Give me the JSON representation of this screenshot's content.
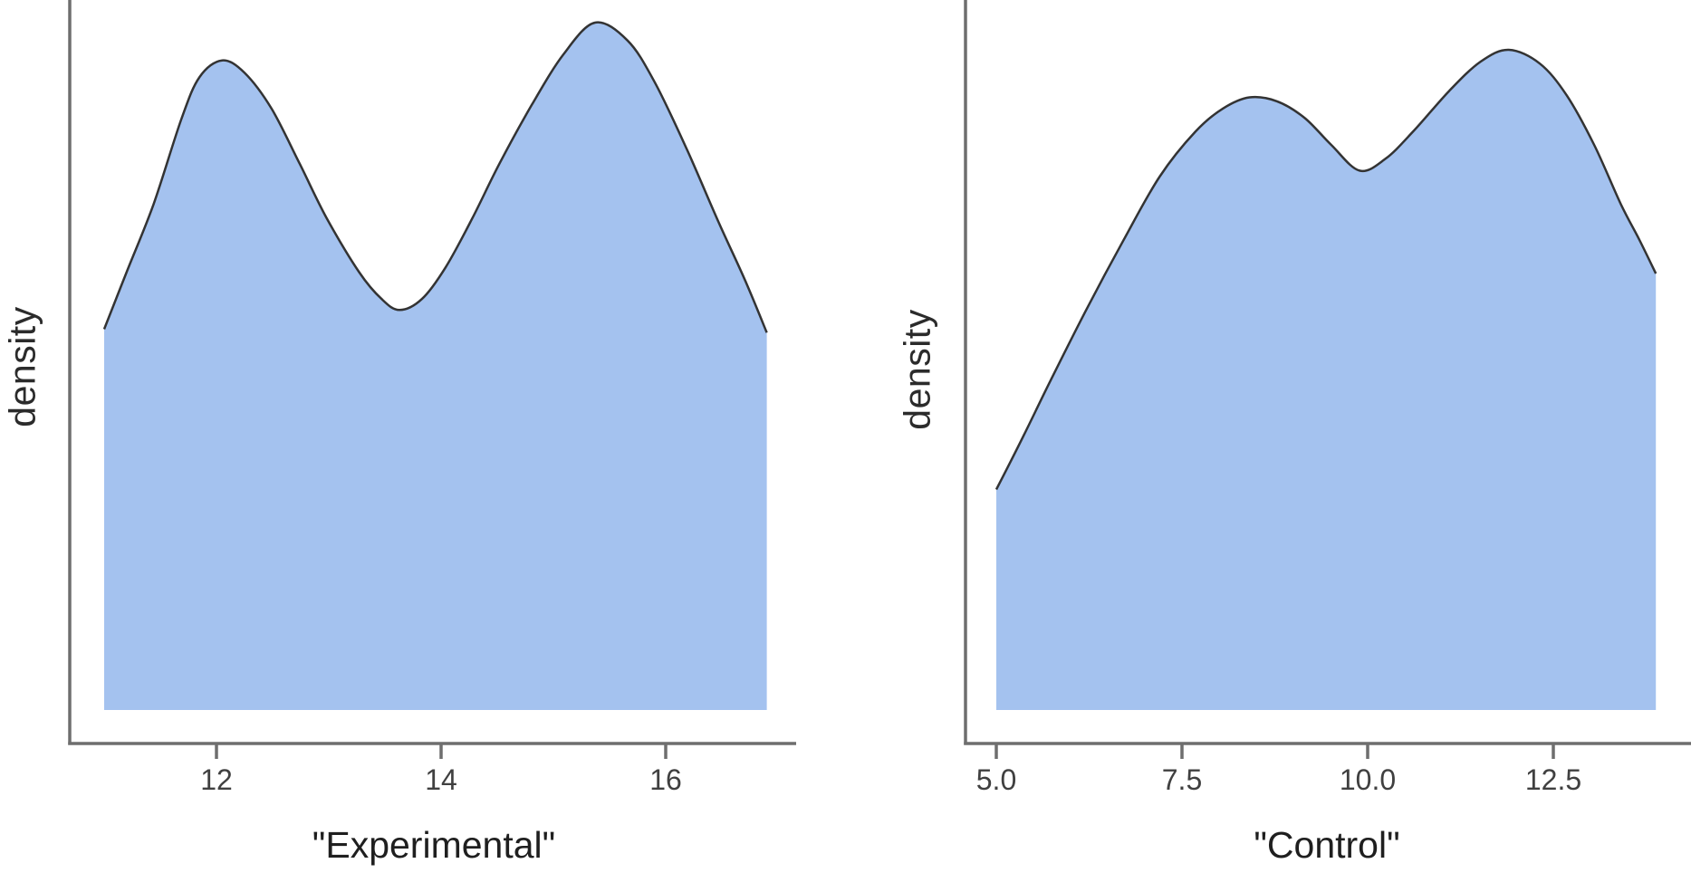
{
  "figure": {
    "background": "#ffffff",
    "area_fill_color": "#a4c2ef",
    "curve_line_color": "#333333",
    "axis_line_color": "#6e6e6e",
    "tick_label_color": "#404040",
    "axis_title_color": "#1f1f1f"
  },
  "chart_data": [
    {
      "type": "area",
      "subtype": "kernel-density",
      "panel": "left",
      "title": "",
      "xlabel": "\"Experimental\"",
      "ylabel": "density",
      "x_ticks": [
        12,
        14,
        16
      ],
      "x_tick_labels": [
        "12",
        "14",
        "16"
      ],
      "x_range": [
        11.0,
        16.9
      ],
      "y_units": "relative density (y axis unlabeled, max peak = 1.0)",
      "grid": false,
      "legend": "none",
      "peaks_x": [
        12.05,
        15.4
      ],
      "valley_x": 13.6,
      "points": [
        [
          11.0,
          0.554
        ],
        [
          11.2,
          0.637
        ],
        [
          11.44,
          0.736
        ],
        [
          11.69,
          0.861
        ],
        [
          11.85,
          0.921
        ],
        [
          12.05,
          0.945
        ],
        [
          12.25,
          0.927
        ],
        [
          12.49,
          0.875
        ],
        [
          12.74,
          0.795
        ],
        [
          12.98,
          0.716
        ],
        [
          13.27,
          0.637
        ],
        [
          13.47,
          0.598
        ],
        [
          13.63,
          0.582
        ],
        [
          13.83,
          0.598
        ],
        [
          14.04,
          0.644
        ],
        [
          14.28,
          0.716
        ],
        [
          14.52,
          0.795
        ],
        [
          14.81,
          0.881
        ],
        [
          15.09,
          0.954
        ],
        [
          15.37,
          1.0
        ],
        [
          15.66,
          0.974
        ],
        [
          15.9,
          0.914
        ],
        [
          16.19,
          0.815
        ],
        [
          16.47,
          0.71
        ],
        [
          16.71,
          0.624
        ],
        [
          16.9,
          0.549
        ]
      ]
    },
    {
      "type": "area",
      "subtype": "kernel-density",
      "panel": "right",
      "title": "",
      "xlabel": "\"Control\"",
      "ylabel": "density",
      "x_ticks": [
        5.0,
        7.5,
        10.0,
        12.5
      ],
      "x_tick_labels": [
        "5.0",
        "7.5",
        "10.0",
        "12.5"
      ],
      "x_range": [
        5.0,
        13.9
      ],
      "y_units": "relative density (y axis unlabeled, max peak = 1.0)",
      "grid": false,
      "legend": "none",
      "peaks_x": [
        8.4,
        11.9
      ],
      "valley_x": 9.9,
      "points": [
        [
          5.0,
          0.334
        ],
        [
          5.37,
          0.416
        ],
        [
          5.73,
          0.499
        ],
        [
          6.22,
          0.608
        ],
        [
          6.71,
          0.711
        ],
        [
          7.2,
          0.808
        ],
        [
          7.68,
          0.876
        ],
        [
          8.05,
          0.911
        ],
        [
          8.41,
          0.928
        ],
        [
          8.78,
          0.922
        ],
        [
          9.15,
          0.897
        ],
        [
          9.51,
          0.856
        ],
        [
          9.89,
          0.817
        ],
        [
          10.24,
          0.835
        ],
        [
          10.61,
          0.876
        ],
        [
          11.1,
          0.938
        ],
        [
          11.52,
          0.982
        ],
        [
          11.9,
          1.0
        ],
        [
          12.32,
          0.979
        ],
        [
          12.68,
          0.931
        ],
        [
          13.05,
          0.856
        ],
        [
          13.41,
          0.766
        ],
        [
          13.66,
          0.712
        ],
        [
          13.88,
          0.661
        ]
      ]
    }
  ]
}
